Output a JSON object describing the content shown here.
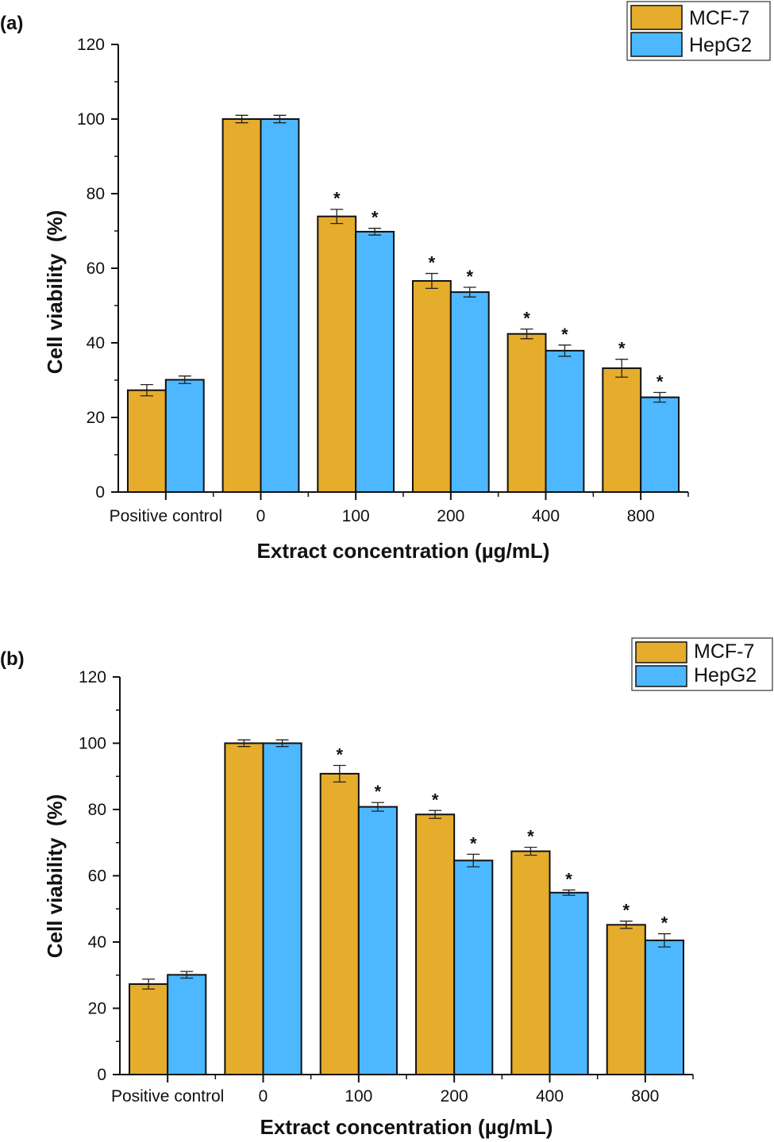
{
  "chart_data": [
    {
      "panel": "(a)",
      "type": "bar",
      "title": "",
      "xlabel": "Extract concentration (µg/mL)",
      "ylabel": "Cell viability  (%)",
      "ylim": [
        0,
        120
      ],
      "yticks": [
        0,
        20,
        40,
        60,
        80,
        100,
        120
      ],
      "grid": false,
      "legend_position": "top-right",
      "categories": [
        "Positive control",
        "0",
        "100",
        "200",
        "400",
        "800"
      ],
      "series": [
        {
          "name": "MCF-7",
          "color": "#E6AC2C",
          "values": [
            27.3,
            100,
            73.9,
            56.6,
            42.4,
            33.2
          ],
          "errors": [
            1.5,
            1.0,
            1.9,
            2.0,
            1.3,
            2.4
          ],
          "significance": [
            "",
            "",
            "*",
            "*",
            "*",
            "*"
          ]
        },
        {
          "name": "HepG2",
          "color": "#4DB8FF",
          "values": [
            30.1,
            100,
            69.8,
            53.6,
            37.9,
            25.4
          ],
          "errors": [
            1.0,
            1.0,
            0.9,
            1.3,
            1.5,
            1.3
          ],
          "significance": [
            "",
            "",
            "*",
            "*",
            "*",
            "*"
          ]
        }
      ]
    },
    {
      "panel": "(b)",
      "type": "bar",
      "title": "",
      "xlabel": "Extract concentration (µg/mL)",
      "ylabel": "Cell viability  (%)",
      "ylim": [
        0,
        120
      ],
      "yticks": [
        0,
        20,
        40,
        60,
        80,
        100,
        120
      ],
      "grid": false,
      "legend_position": "top-right",
      "categories": [
        "Positive control",
        "0",
        "100",
        "200",
        "400",
        "800"
      ],
      "series": [
        {
          "name": "MCF-7",
          "color": "#E6AC2C",
          "values": [
            27.3,
            100,
            90.8,
            78.5,
            67.4,
            45.2
          ],
          "errors": [
            1.5,
            1.0,
            2.5,
            1.2,
            1.2,
            1.1
          ],
          "significance": [
            "",
            "",
            "*",
            "*",
            "*",
            "*"
          ]
        },
        {
          "name": "HepG2",
          "color": "#4DB8FF",
          "values": [
            30.1,
            100,
            80.8,
            64.6,
            54.9,
            40.5
          ],
          "errors": [
            1.0,
            1.0,
            1.3,
            1.9,
            0.8,
            2.0
          ],
          "significance": [
            "",
            "",
            "*",
            "*",
            "*",
            "*"
          ]
        }
      ]
    }
  ]
}
